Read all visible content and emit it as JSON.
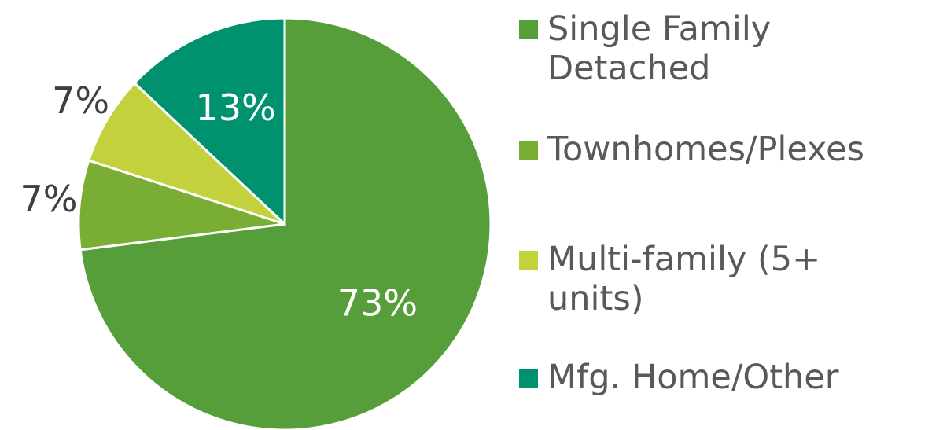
{
  "chart_data": {
    "type": "pie",
    "categories": [
      "Single Family Detached",
      "Townhomes/Plexes",
      "Multi-family (5+ units)",
      "Mfg. Home/Other"
    ],
    "values": [
      73,
      7,
      7,
      13
    ],
    "value_labels": [
      "73%",
      "7%",
      "7%",
      "13%"
    ],
    "colors": [
      "#559e3a",
      "#7aad34",
      "#c3d23c",
      "#00916e"
    ],
    "legend": "right"
  }
}
